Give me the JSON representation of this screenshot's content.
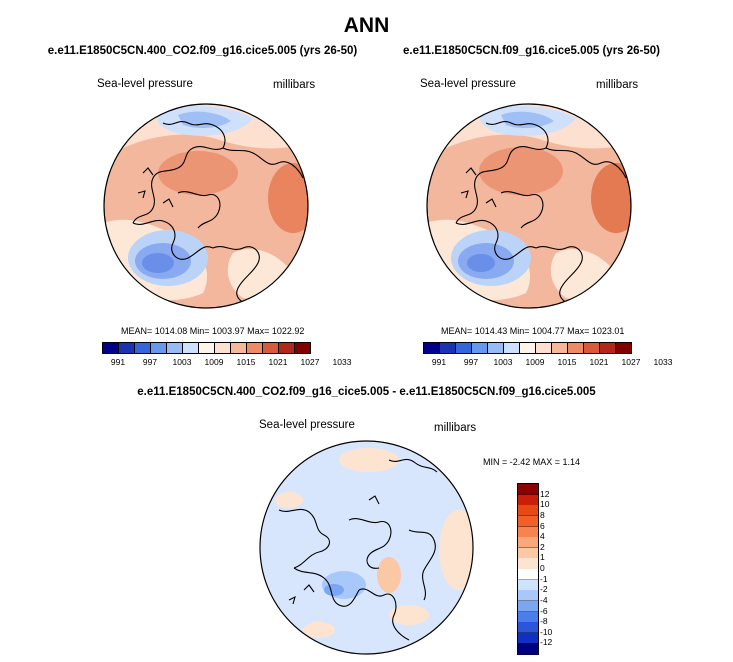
{
  "main_title": "ANN",
  "chart_data": [
    {
      "type": "heatmap",
      "projection": "north-polar-stereographic",
      "title": "e.e11.E1850C5CN.400_CO2.f09_g16.cice5.005 (yrs 26-50)",
      "variable": "Sea-level pressure",
      "units": "millibars",
      "stats": {
        "mean": "1014.08",
        "min": "1003.97",
        "max": "1022.92"
      },
      "stats_text": "MEAN= 1014.08  Min= 1003.97  Max= 1022.92",
      "colorbar": {
        "orientation": "horizontal",
        "levels": [
          991,
          997,
          1003,
          1009,
          1015,
          1021,
          1027,
          1033
        ],
        "level_labels": [
          "991",
          "997",
          "1003",
          "1009",
          "1015",
          "1021",
          "1027",
          "1033"
        ],
        "colors": [
          "#00008c",
          "#1a33b3",
          "#3366dd",
          "#6699ee",
          "#99bbf5",
          "#cce0ff",
          "#fff4ec",
          "#fde0cf",
          "#f7b89a",
          "#ef8a66",
          "#d95a3a",
          "#b3261a",
          "#800000"
        ]
      }
    },
    {
      "type": "heatmap",
      "projection": "north-polar-stereographic",
      "title": "e.e11.E1850C5CN.f09_g16.cice5.005 (yrs 26-50)",
      "variable": "Sea-level pressure",
      "units": "millibars",
      "stats": {
        "mean": "1014.43",
        "min": "1004.77",
        "max": "1023.01"
      },
      "stats_text": "MEAN= 1014.43  Min= 1004.77  Max= 1023.01",
      "colorbar": {
        "orientation": "horizontal",
        "levels": [
          991,
          997,
          1003,
          1009,
          1015,
          1021,
          1027,
          1033
        ],
        "level_labels": [
          "991",
          "997",
          "1003",
          "1009",
          "1015",
          "1021",
          "1027",
          "1033"
        ],
        "colors": [
          "#00008c",
          "#1a33b3",
          "#3366dd",
          "#6699ee",
          "#99bbf5",
          "#cce0ff",
          "#fff4ec",
          "#fde0cf",
          "#f7b89a",
          "#ef8a66",
          "#d95a3a",
          "#b3261a",
          "#800000"
        ]
      }
    },
    {
      "type": "heatmap",
      "projection": "north-polar-stereographic",
      "title": "e.e11.E1850C5CN.400_CO2.f09_g16_cice5.005 - e.e11.E1850C5CN.f09_g16.cice5.005",
      "variable": "Sea-level pressure",
      "units": "millibars",
      "stats": {
        "min": "-2.42",
        "max": "1.14"
      },
      "stats_text": "MIN =  -2.42 MAX =   1.14",
      "colorbar": {
        "orientation": "vertical",
        "levels": [
          12,
          10,
          8,
          6,
          4,
          2,
          1,
          0,
          -1,
          -2,
          -4,
          -6,
          -8,
          -10,
          -12
        ],
        "level_labels": [
          "12",
          "10",
          "8",
          "6",
          "4",
          "2",
          "1",
          "0",
          "-1",
          "-2",
          "-4",
          "-6",
          "-8",
          "-10",
          "-12"
        ],
        "colors": [
          "#8b0000",
          "#c81e0a",
          "#e64a14",
          "#f2602a",
          "#f7844e",
          "#f9a87c",
          "#fbc8a6",
          "#fde4d0",
          "#ffffff",
          "#cfe3ff",
          "#a8c8fa",
          "#7aa6f2",
          "#4a7eea",
          "#2a55dc",
          "#1030c0",
          "#000080"
        ]
      }
    }
  ]
}
